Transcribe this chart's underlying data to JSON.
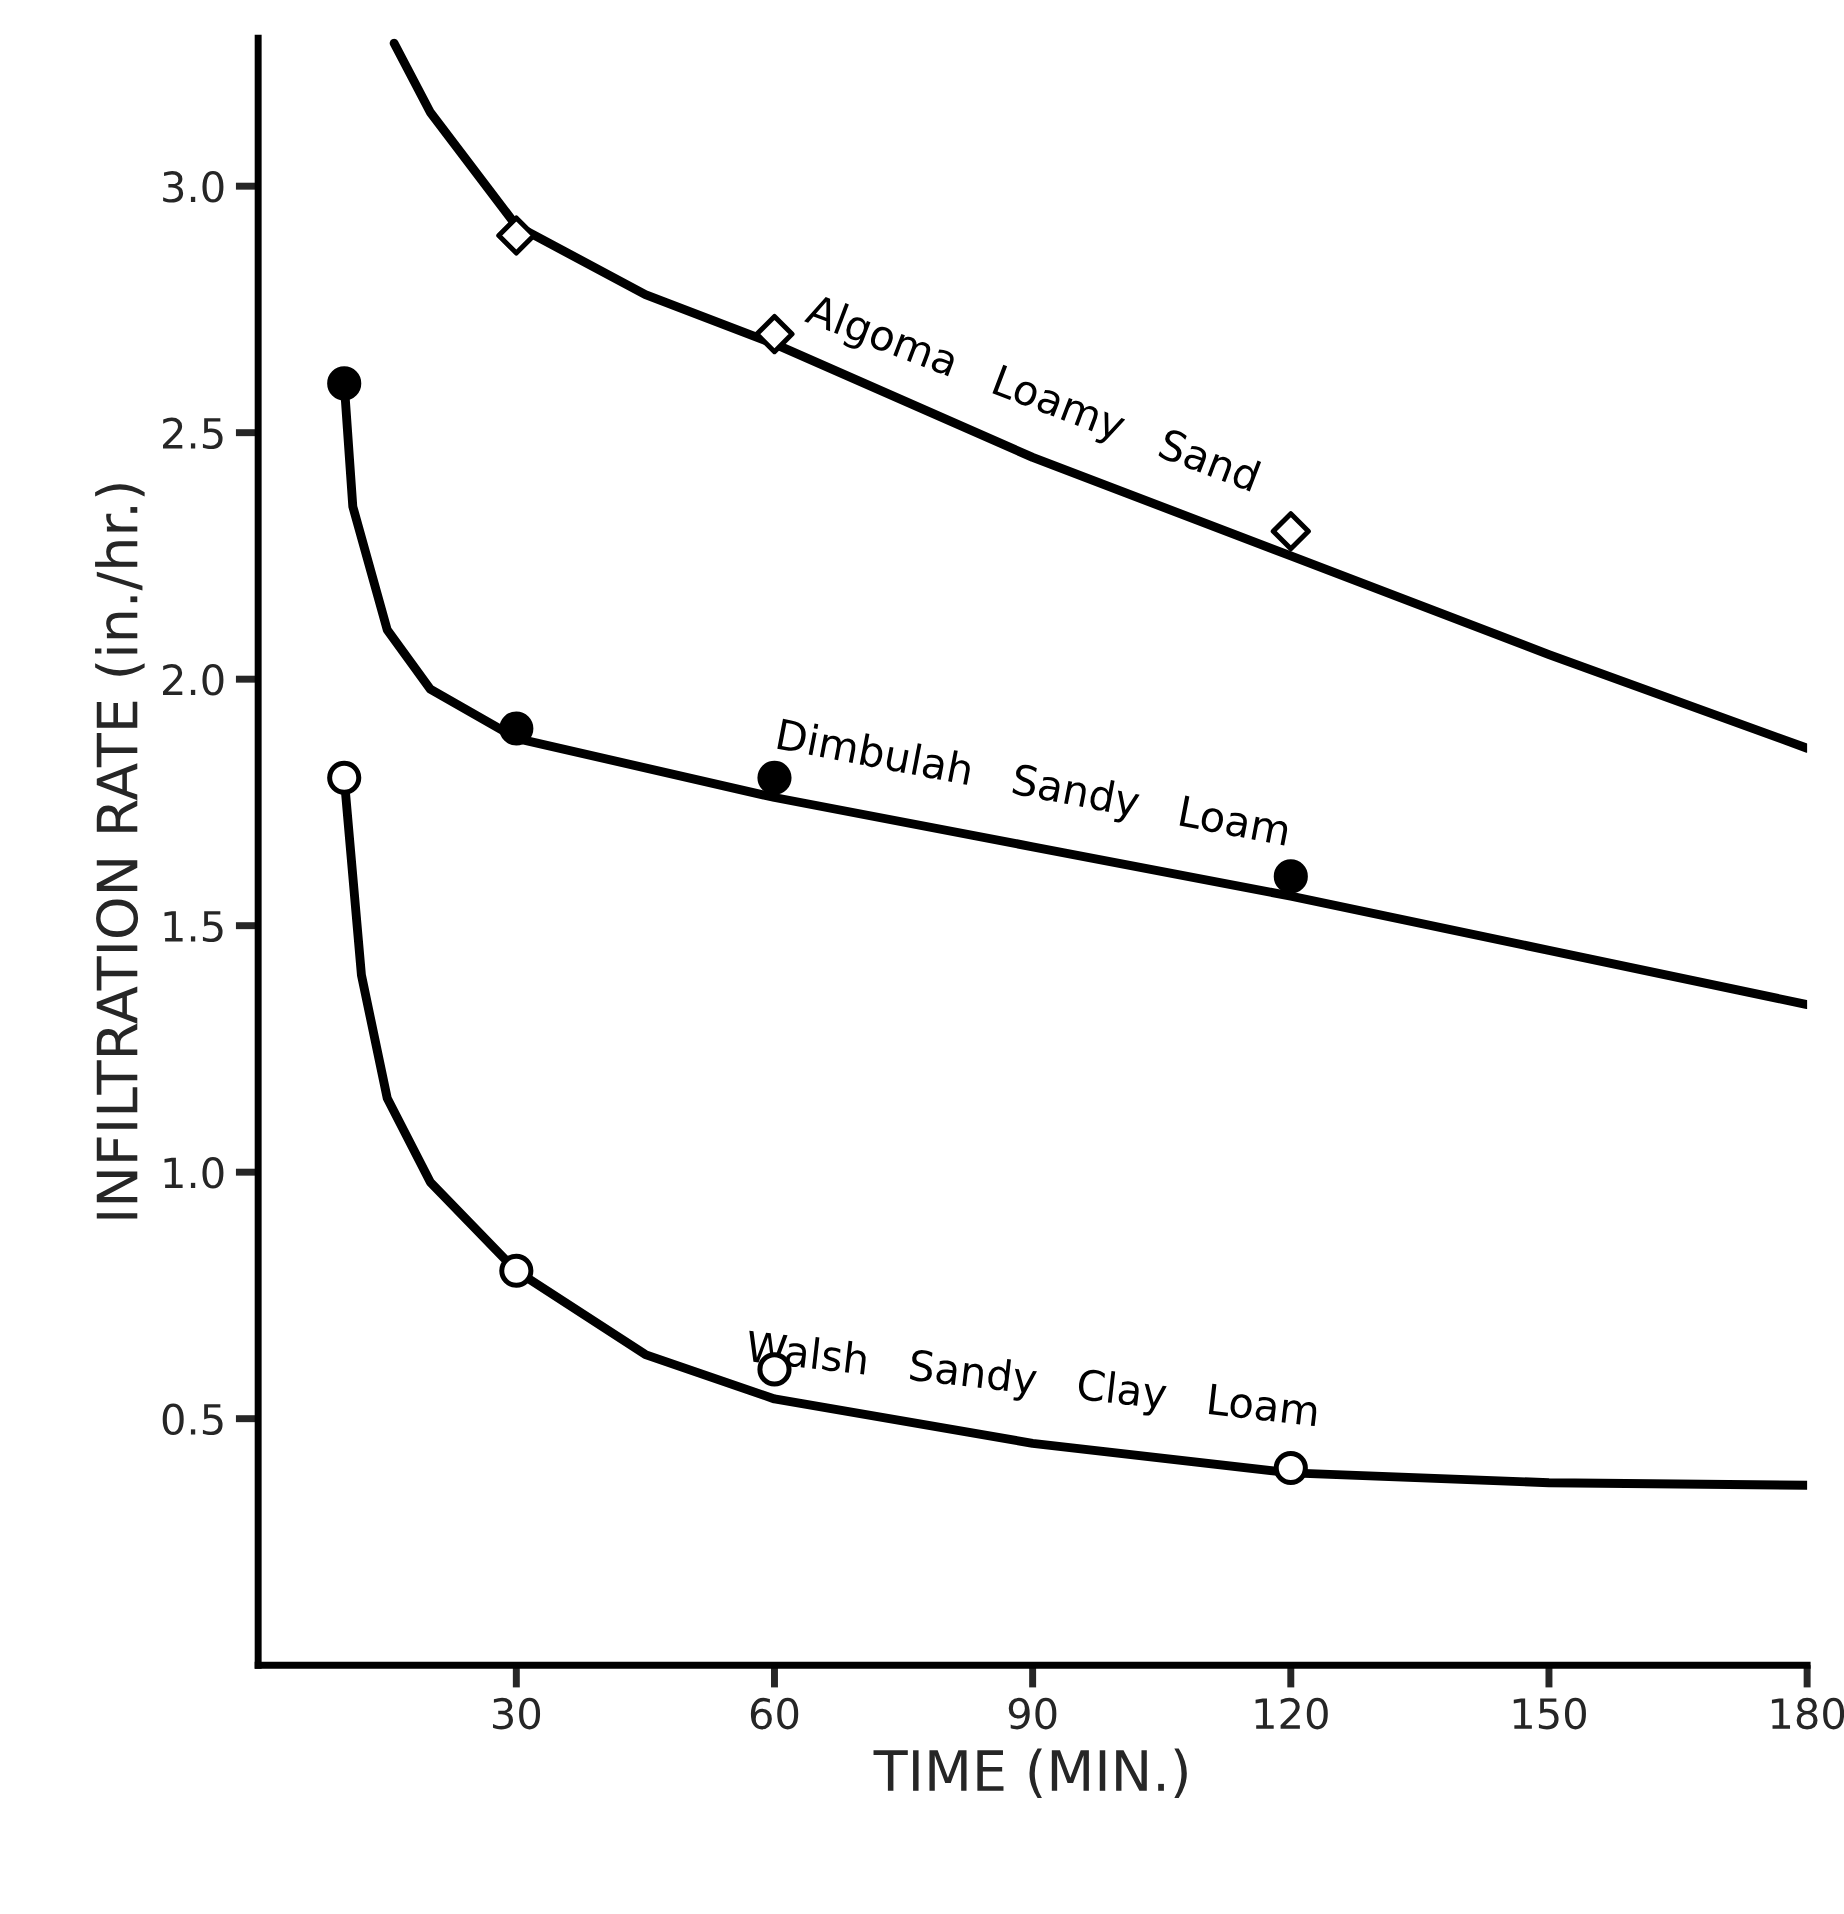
{
  "chart_data": {
    "type": "line",
    "xlabel": "TIME (MIN.)",
    "ylabel": "INFILTRATION RATE (in./hr.)",
    "xlim": [
      0,
      180
    ],
    "xticks": [
      30,
      60,
      90,
      120,
      150,
      180
    ],
    "ylim": [
      0,
      3.3
    ],
    "yticks": [
      0.5,
      {
        "value": 1,
        "label": "1.0"
      },
      1.5,
      {
        "value": 2,
        "label": "2.0"
      },
      2.5,
      {
        "value": 3,
        "label": "3.0"
      }
    ],
    "legend": false,
    "line_style": "solid",
    "series": [
      {
        "color": "#000000",
        "x": [
          15.8,
          20,
          30,
          45,
          60,
          90,
          120,
          150,
          180
        ],
        "values": [
          3.29,
          3.15,
          2.92,
          2.78,
          2.68,
          2.45,
          2.25,
          2.05,
          1.86
        ]
      },
      {
        "type": "scatter",
        "name": "Algoma Loamy Sand",
        "color": "#ffffff",
        "marker": "diamond",
        "x": [
          30,
          60,
          120
        ],
        "values": [
          2.9,
          2.7,
          2.3
        ]
      },
      {
        "color": "#000000",
        "x": [
          10,
          11,
          15,
          20,
          30,
          60,
          90,
          120,
          150,
          180
        ],
        "values": [
          2.6,
          2.35,
          2.1,
          1.98,
          1.88,
          1.76,
          1.66,
          1.56,
          1.45,
          1.34
        ]
      },
      {
        "type": "scatter",
        "name": "Dimbulah Sandy Loam",
        "color": "#000000",
        "marker": "circle",
        "x": [
          10,
          30,
          60,
          120
        ],
        "values": [
          2.6,
          1.9,
          1.8,
          1.6
        ]
      },
      {
        "color": "#000000",
        "x": [
          10,
          12,
          15,
          20,
          30,
          45,
          60,
          90,
          120,
          150,
          180
        ],
        "values": [
          1.8,
          1.4,
          1.15,
          0.98,
          0.8,
          0.63,
          0.54,
          0.45,
          0.39,
          0.37,
          0.365
        ]
      },
      {
        "type": "scatter",
        "name": "Walsh Sandy Clay Loam",
        "color": "#ffffff",
        "marker": "circle",
        "x": [
          10,
          30,
          60,
          120
        ],
        "values": [
          1.8,
          0.8,
          0.6,
          0.4
        ]
      }
    ]
  }
}
